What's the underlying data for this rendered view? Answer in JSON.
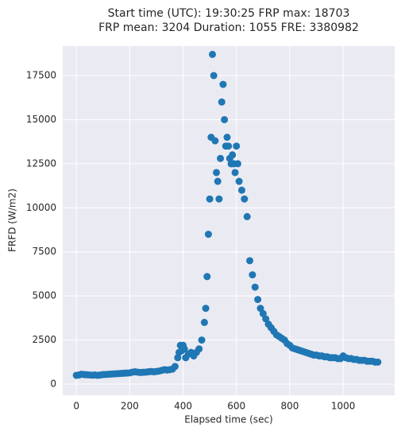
{
  "chart_data": {
    "type": "scatter",
    "title": "Start time (UTC): 19:30:25 FRP max: 18703",
    "subtitle": "FRP mean: 3204 Duration: 1055 FRE: 3380982",
    "xlabel": "Elapsed time (sec)",
    "ylabel": "FRFD (W/m2)",
    "color": "#1f77b4",
    "grid": true,
    "xlim": [
      -51,
      1193
    ],
    "ylim": [
      -630,
      19170
    ],
    "xticks": [
      0,
      200,
      400,
      600,
      800,
      1000
    ],
    "yticks": [
      0,
      2500,
      5000,
      7500,
      10000,
      12500,
      15000,
      17500
    ],
    "x": [
      0,
      10,
      20,
      30,
      40,
      50,
      60,
      70,
      80,
      90,
      100,
      110,
      120,
      130,
      140,
      150,
      160,
      170,
      180,
      190,
      200,
      210,
      220,
      230,
      240,
      250,
      260,
      270,
      280,
      290,
      300,
      310,
      320,
      330,
      340,
      350,
      360,
      370,
      380,
      385,
      390,
      395,
      400,
      405,
      410,
      420,
      430,
      440,
      450,
      460,
      470,
      480,
      485,
      490,
      495,
      500,
      505,
      510,
      515,
      520,
      525,
      530,
      535,
      540,
      545,
      550,
      555,
      560,
      565,
      570,
      575,
      580,
      585,
      590,
      595,
      600,
      605,
      610,
      620,
      630,
      640,
      650,
      660,
      670,
      680,
      690,
      700,
      710,
      720,
      730,
      740,
      750,
      760,
      770,
      780,
      790,
      800,
      810,
      820,
      830,
      840,
      850,
      860,
      870,
      880,
      890,
      900,
      910,
      920,
      930,
      940,
      950,
      960,
      970,
      980,
      990,
      1000,
      1010,
      1020,
      1030,
      1040,
      1050,
      1060,
      1070,
      1080,
      1090,
      1100,
      1110,
      1120,
      1130
    ],
    "values": [
      500,
      520,
      560,
      540,
      530,
      520,
      510,
      520,
      500,
      520,
      540,
      550,
      560,
      570,
      580,
      590,
      600,
      610,
      620,
      630,
      640,
      680,
      700,
      680,
      660,
      670,
      680,
      700,
      720,
      700,
      720,
      740,
      780,
      820,
      800,
      820,
      850,
      1000,
      1500,
      1800,
      2200,
      1900,
      2200,
      2000,
      1500,
      1700,
      1800,
      1600,
      1800,
      2000,
      2500,
      3500,
      4300,
      6100,
      8500,
      10500,
      14000,
      18700,
      17500,
      13800,
      12000,
      11500,
      10500,
      12800,
      16000,
      17000,
      15000,
      13500,
      14000,
      13500,
      12800,
      12500,
      13000,
      12500,
      12000,
      13500,
      12500,
      11500,
      11000,
      10500,
      9500,
      7000,
      6200,
      5500,
      4800,
      4300,
      4000,
      3700,
      3400,
      3200,
      3000,
      2800,
      2700,
      2600,
      2500,
      2300,
      2200,
      2050,
      2000,
      1950,
      1900,
      1850,
      1800,
      1750,
      1700,
      1650,
      1650,
      1600,
      1600,
      1550,
      1550,
      1500,
      1500,
      1500,
      1450,
      1450,
      1600,
      1500,
      1450,
      1450,
      1400,
      1400,
      1350,
      1350,
      1350,
      1300,
      1300,
      1300,
      1250,
      1250
    ]
  }
}
